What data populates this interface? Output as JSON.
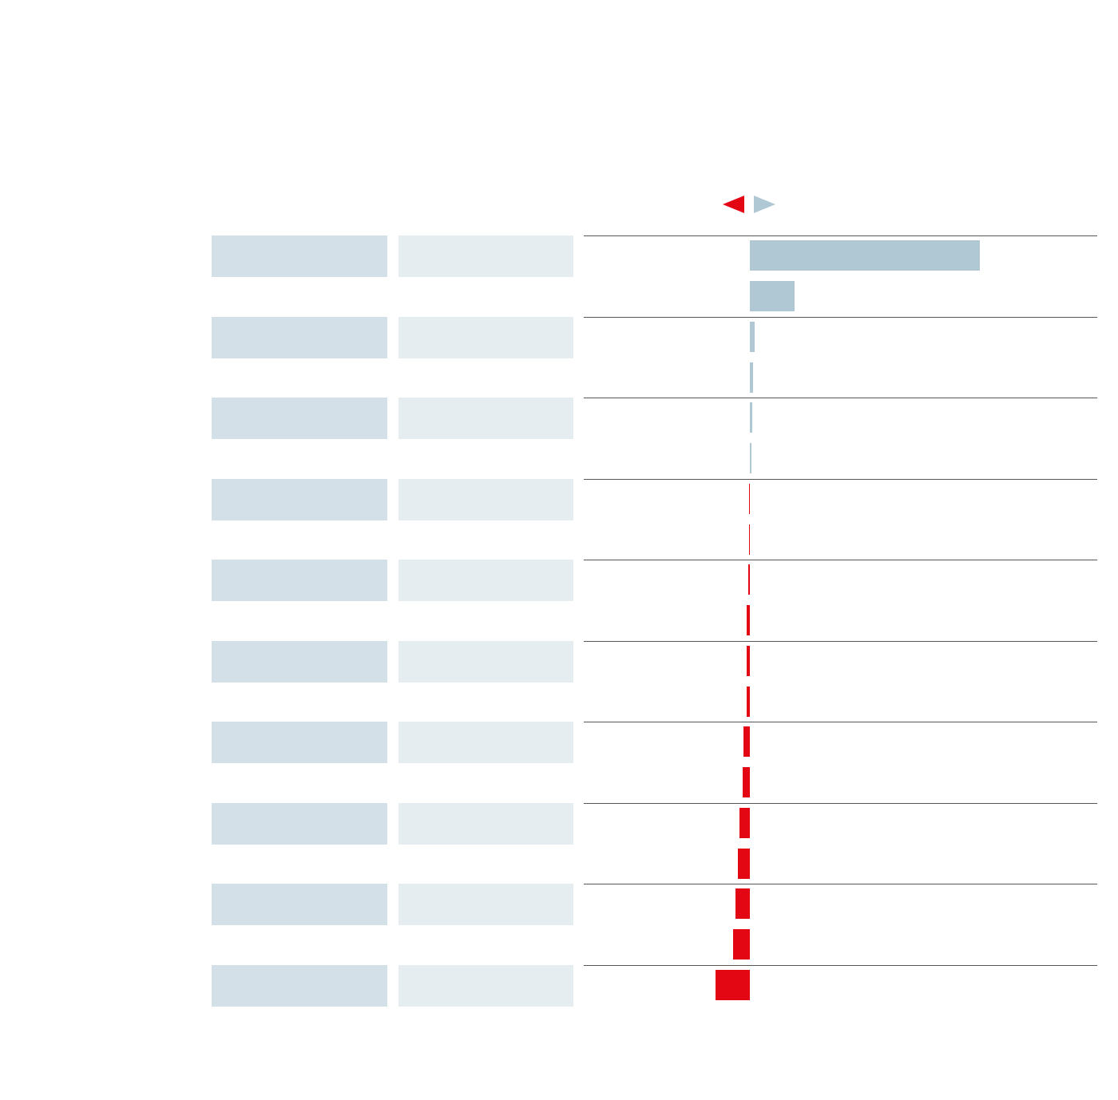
{
  "chart_data": {
    "type": "bar",
    "orientation": "horizontal-diverging",
    "title": "",
    "xlabel": "",
    "ylabel": "",
    "legend_placement": "top-center",
    "colors": {
      "positive": "#afc8d3",
      "negative": "#e30613",
      "label_band_primary": "#d4e0e7",
      "label_band_secondary": "#e6edf1",
      "divider": "#555555"
    },
    "legend": [
      {
        "icon": "left-arrow-icon",
        "color": "#e30613"
      },
      {
        "icon": "right-arrow-icon",
        "color": "#afc8d3"
      }
    ],
    "groups": [
      {
        "label_primary": "",
        "label_secondary": "",
        "values": [
          288,
          56
        ]
      },
      {
        "label_primary": "",
        "label_secondary": "",
        "values": [
          6,
          4
        ]
      },
      {
        "label_primary": "",
        "label_secondary": "",
        "values": [
          3,
          2
        ]
      },
      {
        "label_primary": "",
        "label_secondary": "",
        "values": [
          -1,
          -1
        ]
      },
      {
        "label_primary": "",
        "label_secondary": "",
        "values": [
          -2,
          -4
        ]
      },
      {
        "label_primary": "",
        "label_secondary": "",
        "values": [
          -4,
          -4
        ]
      },
      {
        "label_primary": "",
        "label_secondary": "",
        "values": [
          -8,
          -9
        ]
      },
      {
        "label_primary": "",
        "label_secondary": "",
        "values": [
          -13,
          -15
        ]
      },
      {
        "label_primary": "",
        "label_secondary": "",
        "values": [
          -18,
          -21
        ]
      },
      {
        "label_primary": "",
        "label_secondary": "",
        "values": [
          -43
        ]
      }
    ],
    "xlim": [
      -45,
      290
    ],
    "grid": false
  }
}
